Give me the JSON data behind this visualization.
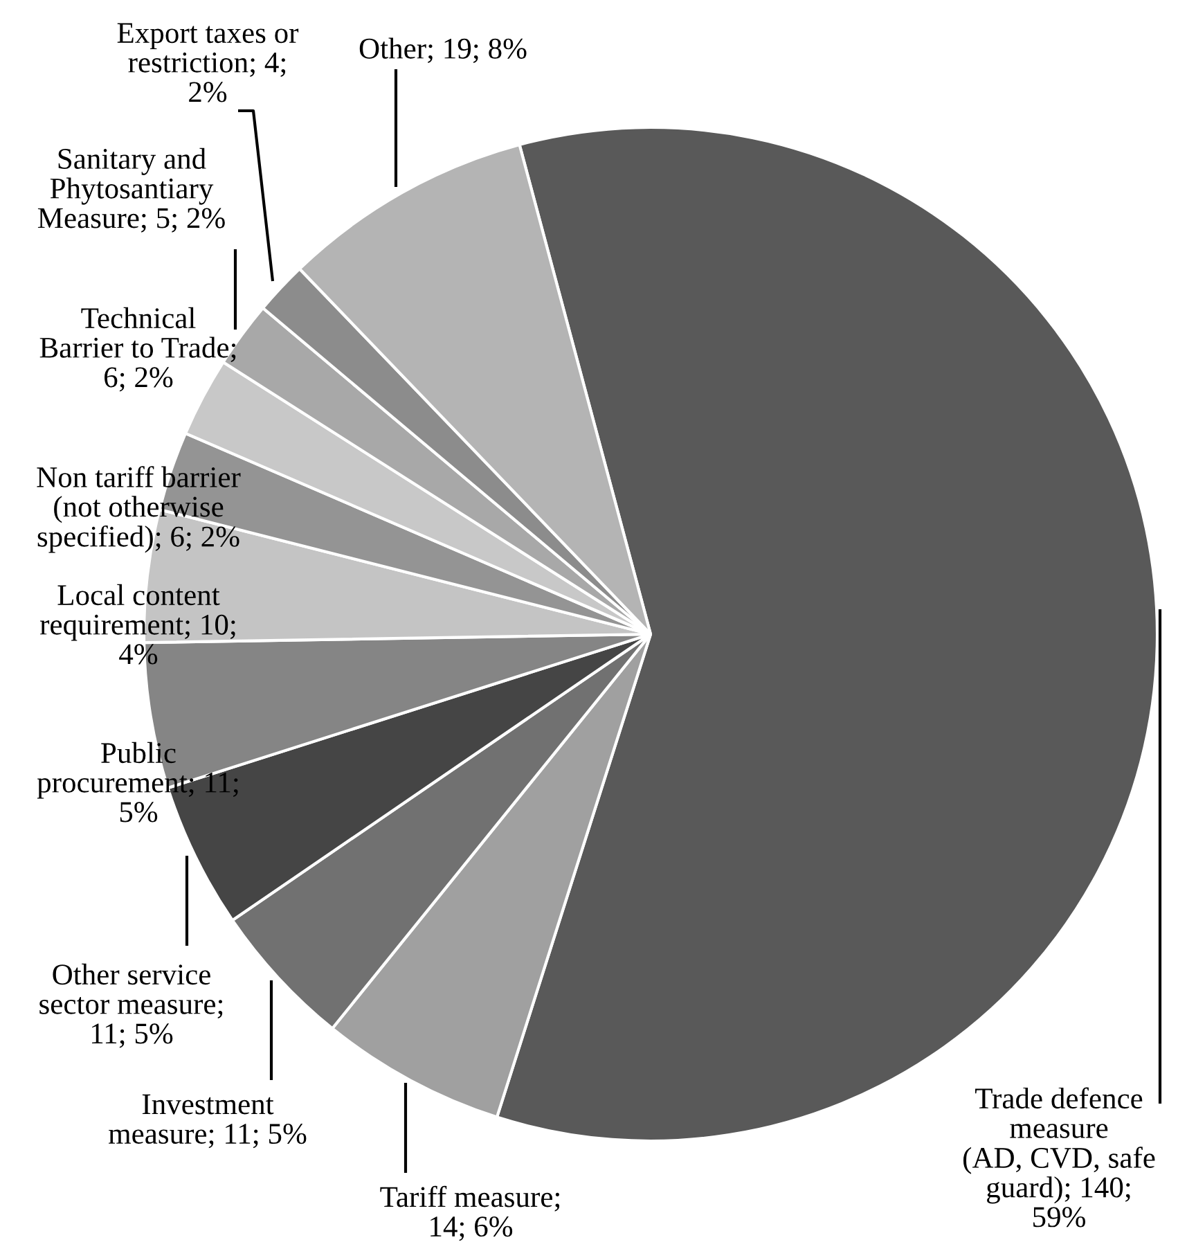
{
  "chart_data": {
    "type": "pie",
    "categories": [
      "Trade defence measure (AD, CVD, safe guard); 140; 59%",
      "Tariff measure; 14; 6%",
      "Investment measure; 11; 5%",
      "Other service sector measure; 11; 5%",
      "Public procurement; 11; 5%",
      "Local content requirement; 10; 4%",
      "Non tariff barrier (not otherwise specified); 6; 2%",
      "Technical Barrier to Trade; 6; 2%",
      "Sanitary and Phytosantiary Measure; 5; 2%",
      "Export taxes or restriction; 4; 2%",
      "Other; 19; 8%"
    ],
    "values": [
      140,
      14,
      11,
      11,
      11,
      10,
      6,
      6,
      5,
      4,
      19
    ],
    "colors": [
      "#595959",
      "#a0a0a0",
      "#717171",
      "#454545",
      "#858585",
      "#c4c4c4",
      "#949494",
      "#c8c8c8",
      "#a8a8a8",
      "#8c8c8c",
      "#b4b4b4"
    ],
    "legend": false
  }
}
